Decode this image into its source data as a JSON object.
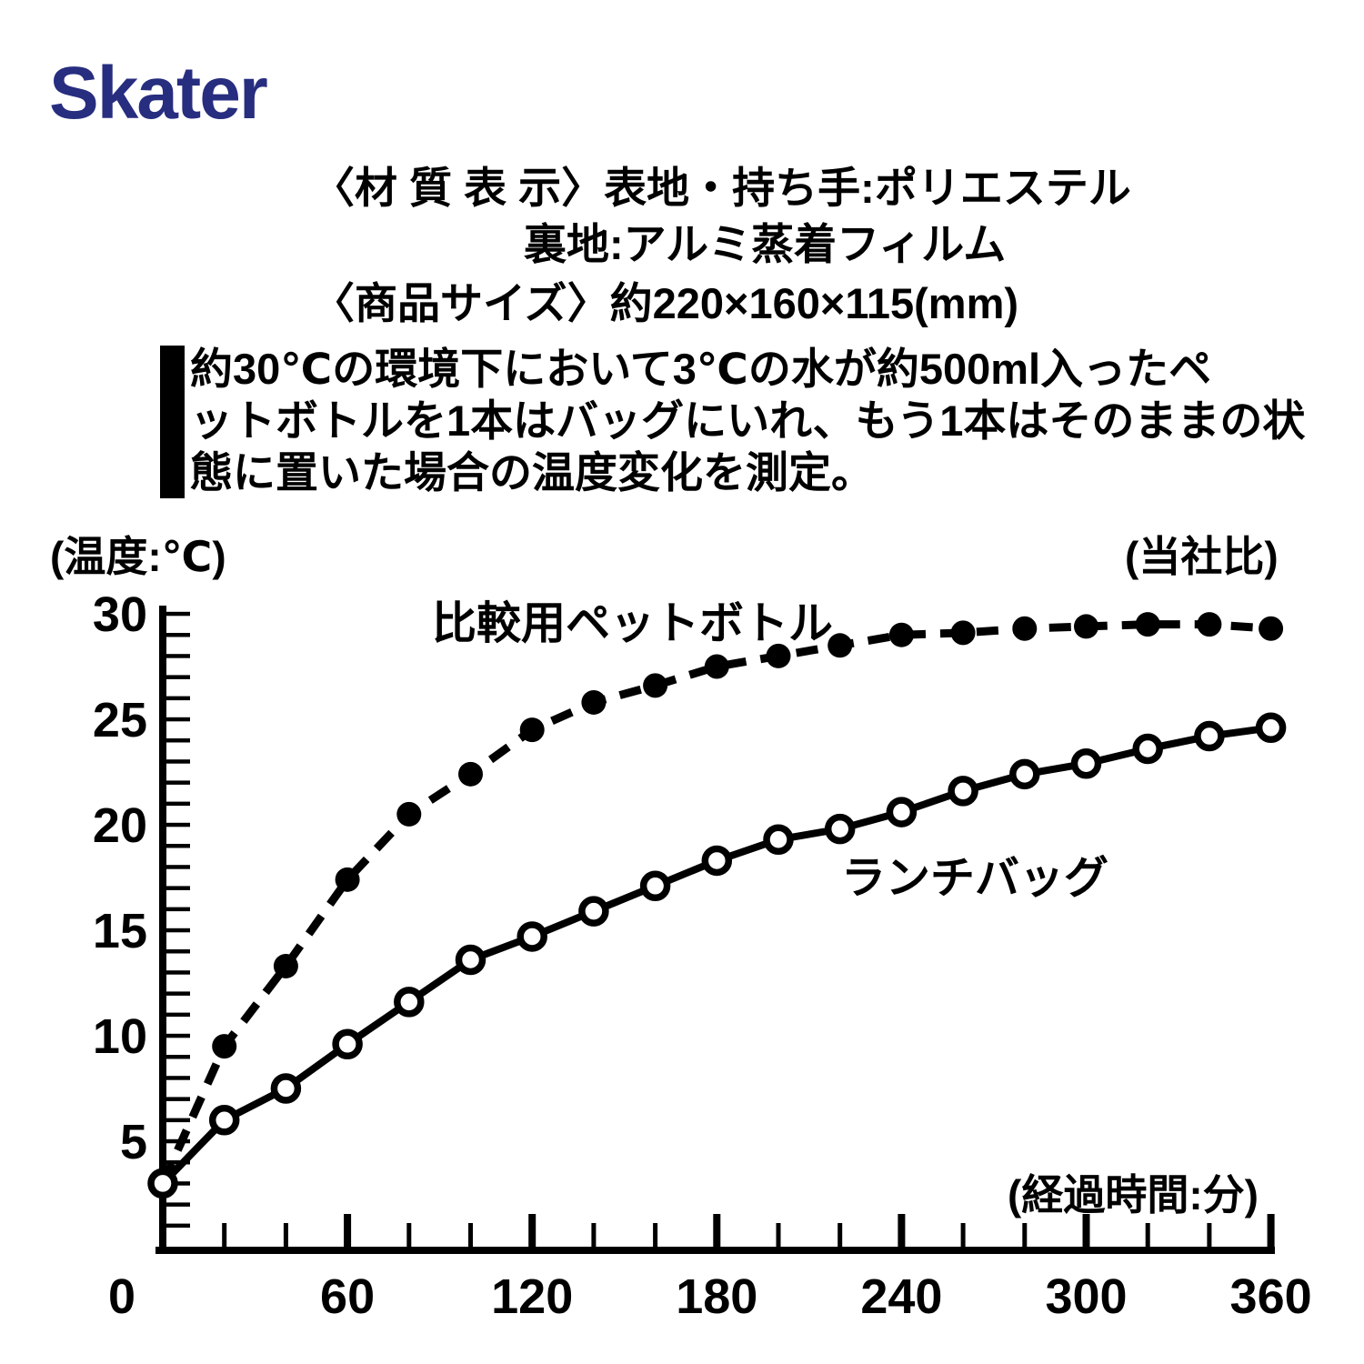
{
  "brand": {
    "logo_text": "Skater",
    "logo_color": "#272d7f"
  },
  "product_info": {
    "material_line1": "〈材 質 表 示〉表地・持ち手:ポリエステル",
    "material_line2": "裏地:アルミ蒸着フィルム",
    "size_line": "〈商品サイズ〉約220×160×115(mm)",
    "test_description_lines": [
      "約30℃の環境下において3℃の水が約500ml入ったペ",
      "ットボトルを1本はバッグにいれ、もう1本はそのままの状",
      "態に置いた場合の温度変化を測定。"
    ]
  },
  "chart_data": {
    "type": "line",
    "title": "",
    "y_axis_label": "(温度:℃)",
    "x_axis_label": "(経過時間:分)",
    "corner_note": "(当社比)",
    "x": [
      0,
      20,
      40,
      60,
      80,
      100,
      120,
      140,
      160,
      180,
      200,
      220,
      240,
      260,
      280,
      300,
      320,
      340,
      360
    ],
    "series": [
      {
        "name": "比較用ペットボトル",
        "line_style": "dashed",
        "marker": "filled-circle",
        "color": "#000000",
        "values": [
          3,
          9.5,
          13.3,
          17.4,
          20.5,
          22.4,
          24.5,
          25.8,
          26.6,
          27.5,
          28.0,
          28.5,
          29.0,
          29.1,
          29.3,
          29.4,
          29.5,
          29.5,
          29.3
        ]
      },
      {
        "name": "ランチバッグ",
        "line_style": "solid",
        "marker": "open-circle",
        "color": "#000000",
        "values": [
          3,
          6.0,
          7.5,
          9.6,
          11.6,
          13.6,
          14.7,
          15.9,
          17.1,
          18.3,
          19.3,
          19.8,
          20.6,
          21.6,
          22.4,
          22.9,
          23.6,
          24.2,
          24.6
        ]
      }
    ],
    "xlim": [
      0,
      360
    ],
    "ylim": [
      0,
      30
    ],
    "x_tick_step": 20,
    "x_major_tick_step": 60,
    "x_tick_labels": [
      0,
      60,
      120,
      180,
      240,
      300,
      360
    ],
    "y_tick_step": 1,
    "y_tick_labels": [
      5,
      10,
      15,
      20,
      25,
      30
    ],
    "grid": false,
    "legend_position": "inline-labels"
  }
}
